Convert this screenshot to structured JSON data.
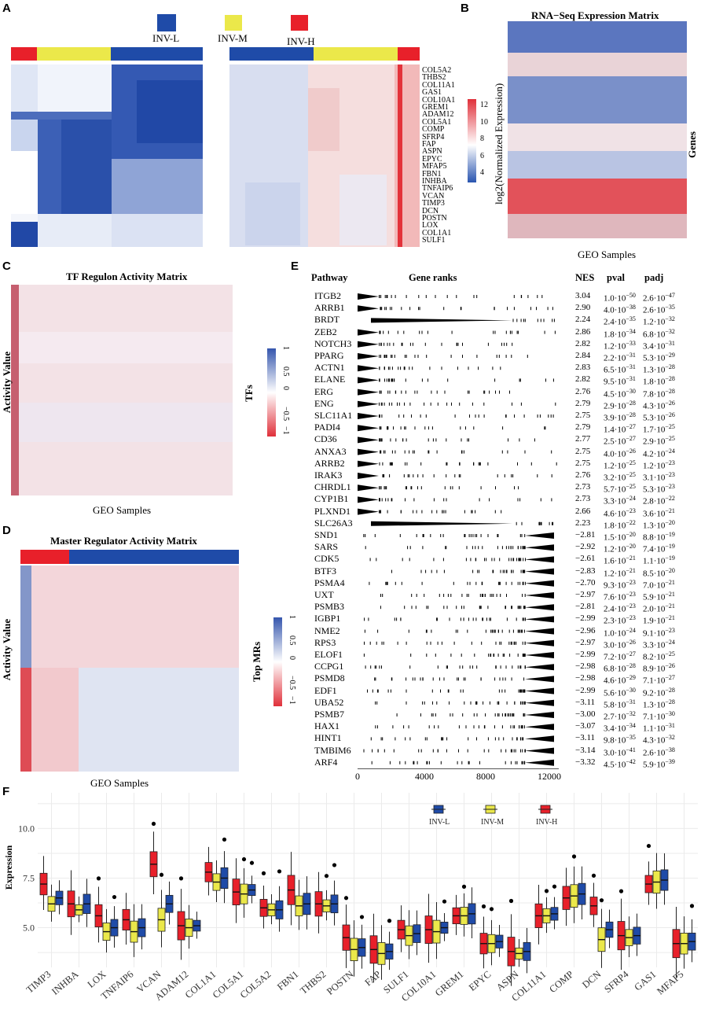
{
  "panels": {
    "A": {
      "label": "A",
      "groups": [
        {
          "name": "INV-L",
          "color": "#1f4ba8"
        },
        {
          "name": "INV-M",
          "color": "#ebe84a"
        },
        {
          "name": "INV-H",
          "color": "#e8202a"
        }
      ],
      "genes": [
        "COL5A2",
        "THBS2",
        "COL11A1",
        "GAS1",
        "COL10A1",
        "GREM1",
        "ADAM12",
        "COL5A1",
        "COMP",
        "SFRP4",
        "FAP",
        "ASPN",
        "EPYC",
        "MFAP5",
        "FBN1",
        "INHBA",
        "TNFAIP6",
        "VCAN",
        "TIMP3",
        "DCN",
        "POSTN",
        "LOX",
        "COL1A1",
        "SULF1"
      ]
    },
    "B": {
      "label": "B",
      "title": "RNA−Seq Expression Matrix",
      "ylabel": "log2(Normalized Expression)",
      "xlabel": "GEO Samples",
      "rlabel": "Genes",
      "scale_ticks": [
        "12",
        "10",
        "8",
        "6",
        "4"
      ]
    },
    "C": {
      "label": "C",
      "title": "TF Regulon Activity Matrix",
      "ylabel": "Activity Value",
      "xlabel": "GEO Samples",
      "rlabel": "TFs",
      "scale_ticks": [
        "1",
        "0.5",
        "0",
        "−0.5",
        "−1"
      ]
    },
    "D": {
      "label": "D",
      "title": "Master Regulator Activity Matrix",
      "ylabel": "Activity Value",
      "xlabel": "GEO Samples",
      "rlabel": "Top MRs",
      "scale_ticks": [
        "1",
        "0.5",
        "0",
        "−0.5",
        "−1"
      ]
    },
    "E": {
      "label": "E",
      "headers": {
        "pathway": "Pathway",
        "ranks": "Gene ranks",
        "nes": "NES",
        "pval": "pval",
        "padj": "padj"
      },
      "x_ticks": [
        "0",
        "4000",
        "8000",
        "12000"
      ],
      "rows": [
        {
          "name": "ITGB2",
          "nes": "3.04",
          "pval": "1.0·10",
          "pexp": "−50",
          "padj": "2.6·10",
          "aexp": "−47",
          "dir": "pos"
        },
        {
          "name": "ARRB1",
          "nes": "2.90",
          "pval": "4.0·10",
          "pexp": "−38",
          "padj": "2.6·10",
          "aexp": "−35",
          "dir": "pos"
        },
        {
          "name": "BRDT",
          "nes": "2.24",
          "pval": "2.4·10",
          "pexp": "−35",
          "padj": "1.2·10",
          "aexp": "−32",
          "dir": "wide"
        },
        {
          "name": "ZEB2",
          "nes": "2.86",
          "pval": "1.8·10",
          "pexp": "−34",
          "padj": "6.8·10",
          "aexp": "−32",
          "dir": "pos"
        },
        {
          "name": "NOTCH3",
          "nes": "2.82",
          "pval": "1.2·10",
          "pexp": "−33",
          "padj": "3.4·10",
          "aexp": "−31",
          "dir": "pos"
        },
        {
          "name": "PPARG",
          "nes": "2.84",
          "pval": "2.2·10",
          "pexp": "−31",
          "padj": "5.3·10",
          "aexp": "−29",
          "dir": "pos"
        },
        {
          "name": "ACTN1",
          "nes": "2.83",
          "pval": "6.5·10",
          "pexp": "−31",
          "padj": "1.3·10",
          "aexp": "−28",
          "dir": "pos"
        },
        {
          "name": "ELANE",
          "nes": "2.82",
          "pval": "9.5·10",
          "pexp": "−31",
          "padj": "1.8·10",
          "aexp": "−28",
          "dir": "pos"
        },
        {
          "name": "ERG",
          "nes": "2.76",
          "pval": "4.5·10",
          "pexp": "−30",
          "padj": "7.8·10",
          "aexp": "−28",
          "dir": "pos"
        },
        {
          "name": "ENG",
          "nes": "2.79",
          "pval": "2.9·10",
          "pexp": "−28",
          "padj": "4.3·10",
          "aexp": "−26",
          "dir": "pos"
        },
        {
          "name": "SLC11A1",
          "nes": "2.75",
          "pval": "3.9·10",
          "pexp": "−28",
          "padj": "5.3·10",
          "aexp": "−26",
          "dir": "pos"
        },
        {
          "name": "PADI4",
          "nes": "2.79",
          "pval": "1.4·10",
          "pexp": "−27",
          "padj": "1.7·10",
          "aexp": "−25",
          "dir": "pos"
        },
        {
          "name": "CD36",
          "nes": "2.77",
          "pval": "2.5·10",
          "pexp": "−27",
          "padj": "2.9·10",
          "aexp": "−25",
          "dir": "pos"
        },
        {
          "name": "ANXA3",
          "nes": "2.75",
          "pval": "4.0·10",
          "pexp": "−26",
          "padj": "4.2·10",
          "aexp": "−24",
          "dir": "pos"
        },
        {
          "name": "ARRB2",
          "nes": "2.75",
          "pval": "1.2·10",
          "pexp": "−25",
          "padj": "1.2·10",
          "aexp": "−23",
          "dir": "pos"
        },
        {
          "name": "IRAK3",
          "nes": "2.76",
          "pval": "3.2·10",
          "pexp": "−25",
          "padj": "3.1·10",
          "aexp": "−23",
          "dir": "pos"
        },
        {
          "name": "CHRDL1",
          "nes": "2.73",
          "pval": "5.7·10",
          "pexp": "−25",
          "padj": "5.3·10",
          "aexp": "−23",
          "dir": "pos"
        },
        {
          "name": "CYP1B1",
          "nes": "2.73",
          "pval": "3.3·10",
          "pexp": "−24",
          "padj": "2.8·10",
          "aexp": "−22",
          "dir": "pos"
        },
        {
          "name": "PLXND1",
          "nes": "2.66",
          "pval": "4.6·10",
          "pexp": "−23",
          "padj": "3.6·10",
          "aexp": "−21",
          "dir": "pos"
        },
        {
          "name": "SLC26A3",
          "nes": "2.23",
          "pval": "1.8·10",
          "pexp": "−22",
          "padj": "1.3·10",
          "aexp": "−20",
          "dir": "wide"
        },
        {
          "name": "SND1",
          "nes": "−2.81",
          "pval": "1.5·10",
          "pexp": "−20",
          "padj": "8.8·10",
          "aexp": "−19",
          "dir": "neg"
        },
        {
          "name": "SARS",
          "nes": "−2.92",
          "pval": "1.2·10",
          "pexp": "−20",
          "padj": "7.4·10",
          "aexp": "−19",
          "dir": "neg"
        },
        {
          "name": "CDK5",
          "nes": "−2.61",
          "pval": "1.6·10",
          "pexp": "−21",
          "padj": "1.1·10",
          "aexp": "−19",
          "dir": "neg"
        },
        {
          "name": "BTF3",
          "nes": "−2.83",
          "pval": "1.2·10",
          "pexp": "−21",
          "padj": "8.5·10",
          "aexp": "−20",
          "dir": "neg"
        },
        {
          "name": "PSMA4",
          "nes": "−2.70",
          "pval": "9.3·10",
          "pexp": "−23",
          "padj": "7.0·10",
          "aexp": "−21",
          "dir": "neg"
        },
        {
          "name": "UXT",
          "nes": "−2.97",
          "pval": "7.6·10",
          "pexp": "−23",
          "padj": "5.9·10",
          "aexp": "−21",
          "dir": "neg"
        },
        {
          "name": "PSMB3",
          "nes": "−2.81",
          "pval": "2.4·10",
          "pexp": "−23",
          "padj": "2.0·10",
          "aexp": "−21",
          "dir": "neg"
        },
        {
          "name": "IGBP1",
          "nes": "−2.99",
          "pval": "2.3·10",
          "pexp": "−23",
          "padj": "1.9·10",
          "aexp": "−21",
          "dir": "neg"
        },
        {
          "name": "NME2",
          "nes": "−2.96",
          "pval": "1.0·10",
          "pexp": "−24",
          "padj": "9.1·10",
          "aexp": "−23",
          "dir": "neg"
        },
        {
          "name": "RPS3",
          "nes": "−2.97",
          "pval": "3.0·10",
          "pexp": "−26",
          "padj": "3.3·10",
          "aexp": "−24",
          "dir": "neg"
        },
        {
          "name": "ELOF1",
          "nes": "−2.99",
          "pval": "7.2·10",
          "pexp": "−27",
          "padj": "8.2·10",
          "aexp": "−25",
          "dir": "neg"
        },
        {
          "name": "CCPG1",
          "nes": "−2.98",
          "pval": "6.8·10",
          "pexp": "−28",
          "padj": "8.9·10",
          "aexp": "−26",
          "dir": "neg"
        },
        {
          "name": "PSMD8",
          "nes": "−2.98",
          "pval": "4.6·10",
          "pexp": "−29",
          "padj": "7.1·10",
          "aexp": "−27",
          "dir": "neg"
        },
        {
          "name": "EDF1",
          "nes": "−2.99",
          "pval": "5.6·10",
          "pexp": "−30",
          "padj": "9.2·10",
          "aexp": "−28",
          "dir": "neg"
        },
        {
          "name": "UBA52",
          "nes": "−3.11",
          "pval": "5.8·10",
          "pexp": "−31",
          "padj": "1.3·10",
          "aexp": "−28",
          "dir": "neg"
        },
        {
          "name": "PSMB7",
          "nes": "−3.00",
          "pval": "2.7·10",
          "pexp": "−32",
          "padj": "7.1·10",
          "aexp": "−30",
          "dir": "neg"
        },
        {
          "name": "HAX1",
          "nes": "−3.07",
          "pval": "3.4·10",
          "pexp": "−34",
          "padj": "1.1·10",
          "aexp": "−31",
          "dir": "neg"
        },
        {
          "name": "HINT1",
          "nes": "−3.11",
          "pval": "9.8·10",
          "pexp": "−35",
          "padj": "4.3·10",
          "aexp": "−32",
          "dir": "neg"
        },
        {
          "name": "TMBIM6",
          "nes": "−3.14",
          "pval": "3.0·10",
          "pexp": "−41",
          "padj": "2.6·10",
          "aexp": "−38",
          "dir": "neg"
        },
        {
          "name": "ARF4",
          "nes": "−3.32",
          "pval": "4.5·10",
          "pexp": "−42",
          "padj": "5.9·10",
          "aexp": "−39",
          "dir": "neg"
        }
      ]
    },
    "F": {
      "label": "F",
      "ylabel": "Expression"
    }
  },
  "chart_data": {
    "type": "boxplot",
    "ylabel": "Expression",
    "ylim": [
      3.0,
      11.8
    ],
    "yticks": [
      "5.0",
      "7.5",
      "10.0"
    ],
    "legend_position": "top-right",
    "series": [
      {
        "name": "INV-L",
        "color": "#1f4ba8"
      },
      {
        "name": "INV-M",
        "color": "#ebe84a"
      },
      {
        "name": "INV-H",
        "color": "#e8202a"
      }
    ],
    "categories": [
      "TIMP3",
      "INHBA",
      "LOX",
      "TNFAIP6",
      "VCAN",
      "ADAM12",
      "COL1A1",
      "COL5A1",
      "COL5A2",
      "FBN1",
      "THBS2",
      "POSTN",
      "FAP",
      "SULF1",
      "COL10A1",
      "GREM1",
      "EPYC",
      "ASPN",
      "COL11A1",
      "COMP",
      "DCN",
      "SFRP4",
      "GAS1",
      "MFAP5"
    ],
    "medians": {
      "INV-H": [
        7.2,
        6.2,
        5.6,
        5.4,
        8.2,
        5.1,
        7.8,
        6.8,
        6.0,
        6.9,
        6.2,
        4.5,
        3.9,
        4.9,
        4.9,
        5.6,
        4.2,
        3.8,
        5.6,
        6.5,
        6.1,
        4.6,
        7.2,
        4.2
      ],
      "INV-M": [
        6.2,
        5.9,
        4.8,
        4.8,
        5.4,
        5.0,
        7.3,
        6.7,
        5.9,
        6.1,
        6.1,
        3.9,
        3.7,
        4.6,
        4.8,
        5.6,
        4.2,
        3.7,
        5.6,
        6.6,
        4.4,
        4.5,
        7.3,
        4.2
      ],
      "INV-L": [
        6.5,
        6.2,
        5.0,
        5.0,
        6.2,
        5.1,
        7.5,
        6.9,
        5.9,
        6.2,
        6.2,
        4.0,
        3.8,
        4.7,
        5.0,
        5.7,
        4.3,
        3.8,
        5.7,
        6.7,
        4.9,
        4.6,
        7.4,
        4.3
      ]
    }
  }
}
